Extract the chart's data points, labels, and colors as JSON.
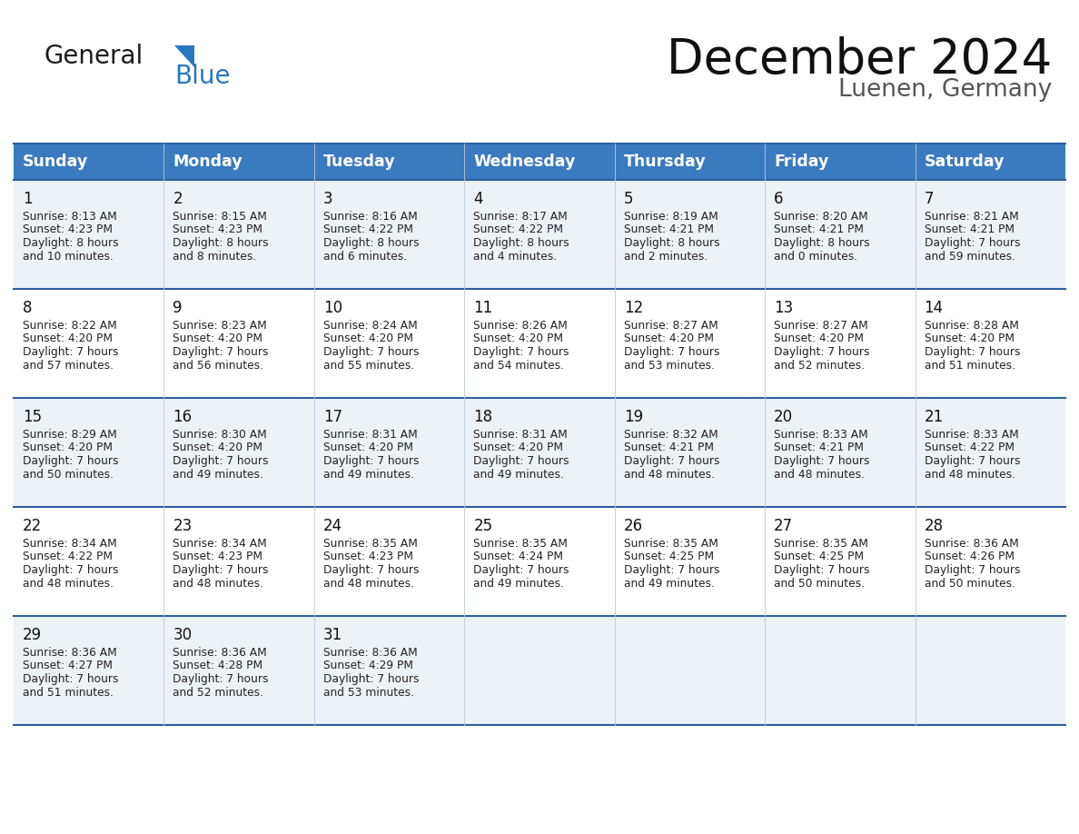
{
  "title": "December 2024",
  "subtitle": "Luenen, Germany",
  "header_bg": "#3a7abf",
  "header_text_color": "#ffffff",
  "days_of_week": [
    "Sunday",
    "Monday",
    "Tuesday",
    "Wednesday",
    "Thursday",
    "Friday",
    "Saturday"
  ],
  "row_bg_light": "#edf2f7",
  "row_bg_white": "#ffffff",
  "grid_line_color": "#2e5f9e",
  "cell_text_color": "#222222",
  "day_num_color": "#111111",
  "title_color": "#111111",
  "subtitle_color": "#555555",
  "calendar_data": [
    [
      {
        "day": 1,
        "sunrise": "8:13 AM",
        "sunset": "4:23 PM",
        "daylight_h": "8 hours",
        "daylight_m": "and 10 minutes."
      },
      {
        "day": 2,
        "sunrise": "8:15 AM",
        "sunset": "4:23 PM",
        "daylight_h": "8 hours",
        "daylight_m": "and 8 minutes."
      },
      {
        "day": 3,
        "sunrise": "8:16 AM",
        "sunset": "4:22 PM",
        "daylight_h": "8 hours",
        "daylight_m": "and 6 minutes."
      },
      {
        "day": 4,
        "sunrise": "8:17 AM",
        "sunset": "4:22 PM",
        "daylight_h": "8 hours",
        "daylight_m": "and 4 minutes."
      },
      {
        "day": 5,
        "sunrise": "8:19 AM",
        "sunset": "4:21 PM",
        "daylight_h": "8 hours",
        "daylight_m": "and 2 minutes."
      },
      {
        "day": 6,
        "sunrise": "8:20 AM",
        "sunset": "4:21 PM",
        "daylight_h": "8 hours",
        "daylight_m": "and 0 minutes."
      },
      {
        "day": 7,
        "sunrise": "8:21 AM",
        "sunset": "4:21 PM",
        "daylight_h": "7 hours",
        "daylight_m": "and 59 minutes."
      }
    ],
    [
      {
        "day": 8,
        "sunrise": "8:22 AM",
        "sunset": "4:20 PM",
        "daylight_h": "7 hours",
        "daylight_m": "and 57 minutes."
      },
      {
        "day": 9,
        "sunrise": "8:23 AM",
        "sunset": "4:20 PM",
        "daylight_h": "7 hours",
        "daylight_m": "and 56 minutes."
      },
      {
        "day": 10,
        "sunrise": "8:24 AM",
        "sunset": "4:20 PM",
        "daylight_h": "7 hours",
        "daylight_m": "and 55 minutes."
      },
      {
        "day": 11,
        "sunrise": "8:26 AM",
        "sunset": "4:20 PM",
        "daylight_h": "7 hours",
        "daylight_m": "and 54 minutes."
      },
      {
        "day": 12,
        "sunrise": "8:27 AM",
        "sunset": "4:20 PM",
        "daylight_h": "7 hours",
        "daylight_m": "and 53 minutes."
      },
      {
        "day": 13,
        "sunrise": "8:27 AM",
        "sunset": "4:20 PM",
        "daylight_h": "7 hours",
        "daylight_m": "and 52 minutes."
      },
      {
        "day": 14,
        "sunrise": "8:28 AM",
        "sunset": "4:20 PM",
        "daylight_h": "7 hours",
        "daylight_m": "and 51 minutes."
      }
    ],
    [
      {
        "day": 15,
        "sunrise": "8:29 AM",
        "sunset": "4:20 PM",
        "daylight_h": "7 hours",
        "daylight_m": "and 50 minutes."
      },
      {
        "day": 16,
        "sunrise": "8:30 AM",
        "sunset": "4:20 PM",
        "daylight_h": "7 hours",
        "daylight_m": "and 49 minutes."
      },
      {
        "day": 17,
        "sunrise": "8:31 AM",
        "sunset": "4:20 PM",
        "daylight_h": "7 hours",
        "daylight_m": "and 49 minutes."
      },
      {
        "day": 18,
        "sunrise": "8:31 AM",
        "sunset": "4:20 PM",
        "daylight_h": "7 hours",
        "daylight_m": "and 49 minutes."
      },
      {
        "day": 19,
        "sunrise": "8:32 AM",
        "sunset": "4:21 PM",
        "daylight_h": "7 hours",
        "daylight_m": "and 48 minutes."
      },
      {
        "day": 20,
        "sunrise": "8:33 AM",
        "sunset": "4:21 PM",
        "daylight_h": "7 hours",
        "daylight_m": "and 48 minutes."
      },
      {
        "day": 21,
        "sunrise": "8:33 AM",
        "sunset": "4:22 PM",
        "daylight_h": "7 hours",
        "daylight_m": "and 48 minutes."
      }
    ],
    [
      {
        "day": 22,
        "sunrise": "8:34 AM",
        "sunset": "4:22 PM",
        "daylight_h": "7 hours",
        "daylight_m": "and 48 minutes."
      },
      {
        "day": 23,
        "sunrise": "8:34 AM",
        "sunset": "4:23 PM",
        "daylight_h": "7 hours",
        "daylight_m": "and 48 minutes."
      },
      {
        "day": 24,
        "sunrise": "8:35 AM",
        "sunset": "4:23 PM",
        "daylight_h": "7 hours",
        "daylight_m": "and 48 minutes."
      },
      {
        "day": 25,
        "sunrise": "8:35 AM",
        "sunset": "4:24 PM",
        "daylight_h": "7 hours",
        "daylight_m": "and 49 minutes."
      },
      {
        "day": 26,
        "sunrise": "8:35 AM",
        "sunset": "4:25 PM",
        "daylight_h": "7 hours",
        "daylight_m": "and 49 minutes."
      },
      {
        "day": 27,
        "sunrise": "8:35 AM",
        "sunset": "4:25 PM",
        "daylight_h": "7 hours",
        "daylight_m": "and 50 minutes."
      },
      {
        "day": 28,
        "sunrise": "8:36 AM",
        "sunset": "4:26 PM",
        "daylight_h": "7 hours",
        "daylight_m": "and 50 minutes."
      }
    ],
    [
      {
        "day": 29,
        "sunrise": "8:36 AM",
        "sunset": "4:27 PM",
        "daylight_h": "7 hours",
        "daylight_m": "and 51 minutes."
      },
      {
        "day": 30,
        "sunrise": "8:36 AM",
        "sunset": "4:28 PM",
        "daylight_h": "7 hours",
        "daylight_m": "and 52 minutes."
      },
      {
        "day": 31,
        "sunrise": "8:36 AM",
        "sunset": "4:29 PM",
        "daylight_h": "7 hours",
        "daylight_m": "and 53 minutes."
      },
      null,
      null,
      null,
      null
    ]
  ]
}
